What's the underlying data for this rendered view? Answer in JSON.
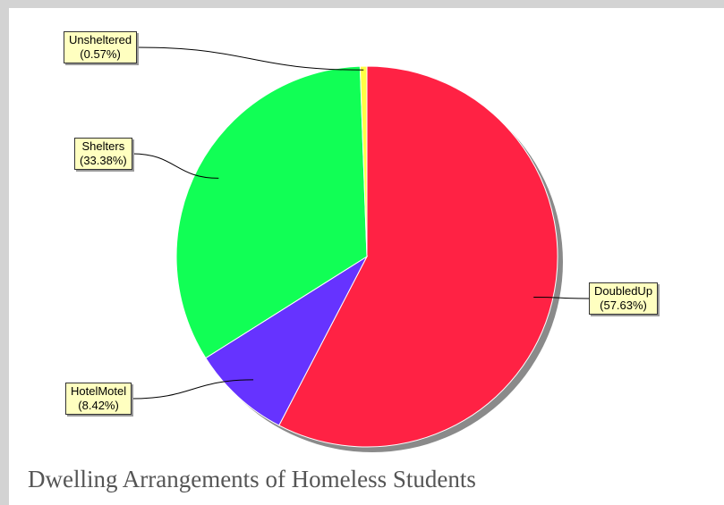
{
  "chart_data": {
    "type": "pie",
    "title": "Dwelling Arrangements of Homeless Students",
    "slices": [
      {
        "name": "DoubledUp",
        "percent_label": "(57.63%)",
        "value": 57.63,
        "color": "#ff2244"
      },
      {
        "name": "HotelMotel",
        "percent_label": "(8.42%)",
        "value": 8.42,
        "color": "#6633ff"
      },
      {
        "name": "Shelters",
        "percent_label": "(33.38%)",
        "value": 33.38,
        "color": "#11ff55"
      },
      {
        "name": "Unsheltered",
        "percent_label": "(0.57%)",
        "value": 0.57,
        "color": "#ffff44"
      }
    ],
    "start_angle": "12 o'clock",
    "direction": "clockwise",
    "legend": "callout labels"
  },
  "colors": {
    "label_fill": "#ffffc0",
    "slice_edge": "#ffffff",
    "shadow": "#8a8a8a",
    "outer_background": "#d3d3d3"
  }
}
